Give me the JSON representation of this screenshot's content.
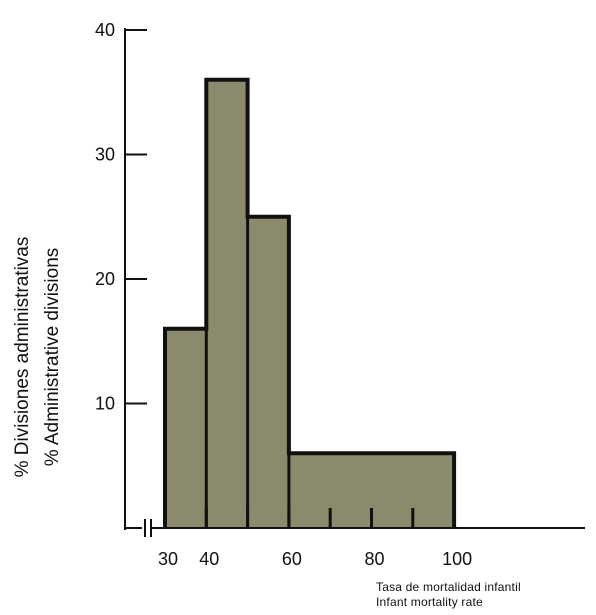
{
  "chart_data": {
    "type": "bar",
    "subtype": "histogram",
    "bins": [
      {
        "from": 30,
        "to": 40,
        "value": 16
      },
      {
        "from": 40,
        "to": 50,
        "value": 36
      },
      {
        "from": 50,
        "to": 60,
        "value": 25
      },
      {
        "from": 60,
        "to": 100,
        "value": 6
      }
    ],
    "x_ticks": [
      30,
      40,
      60,
      80,
      100
    ],
    "x_minor_ticks": [
      40,
      50,
      60,
      70,
      80,
      90
    ],
    "y_ticks": [
      10,
      20,
      30,
      40
    ],
    "xlabel_lines": [
      "Tasa de mortalidad infantil",
      "Infant mortality rate"
    ],
    "ylabel_lines": [
      "% Divisiones administrativas",
      "% Administrative divisions"
    ],
    "xlim": [
      30,
      120
    ],
    "ylim": [
      0,
      40
    ],
    "axis_break": true,
    "grid": false,
    "colors": {
      "fill": "#8c8a6c",
      "outline": "#111111"
    }
  }
}
